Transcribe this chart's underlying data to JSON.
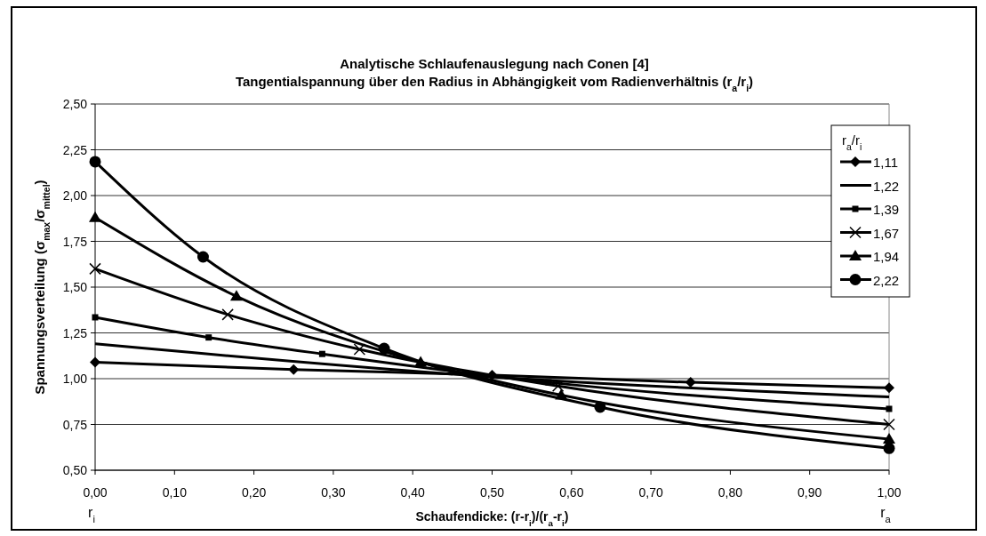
{
  "chart_data": {
    "type": "line",
    "title": "Analytische Schlaufenauslegung nach Conen [4]",
    "subtitle": "Tangentialspannung über den Radius in Abhängigkeit vom Radienverhältnis (r$_{a}$/r$_{i}$)",
    "xlabel": "Schaufendicke: (r-r$_{i}$)/(r$_{a}$-r$_{i}$)",
    "ylabel": "Spannungsverteilung (σ$_{max}$/σ$_{mittel}$)",
    "legend_title": "r$_{a}$/r$_{i}$",
    "legend": "right",
    "grid": "y",
    "line_style": "solid",
    "xlim": [
      0,
      1
    ],
    "ylim": [
      0.5,
      2.5
    ],
    "xticks": [
      {
        "value": 0,
        "label": "0,00"
      },
      {
        "value": 0.1,
        "label": "0,10"
      },
      {
        "value": 0.2,
        "label": "0,20"
      },
      {
        "value": 0.3,
        "label": "0,30"
      },
      {
        "value": 0.4,
        "label": "0,40"
      },
      {
        "value": 0.5,
        "label": "0,50"
      },
      {
        "value": 0.6,
        "label": "0,60"
      },
      {
        "value": 0.7,
        "label": "0,70"
      },
      {
        "value": 0.8,
        "label": "0,80"
      },
      {
        "value": 0.9,
        "label": "0,90"
      },
      {
        "value": 1,
        "label": "1,00"
      }
    ],
    "yticks": [
      {
        "value": 0.5,
        "label": "0,50"
      },
      {
        "value": 0.75,
        "label": "0,75"
      },
      {
        "value": 1,
        "label": "1,00"
      },
      {
        "value": 1.25,
        "label": "1,25"
      },
      {
        "value": 1.5,
        "label": "1,50"
      },
      {
        "value": 1.75,
        "label": "1,75"
      },
      {
        "value": 2,
        "label": "2,00"
      },
      {
        "value": 2.25,
        "label": "2,25"
      },
      {
        "value": 2.5,
        "label": "2,50"
      }
    ],
    "annotations": [
      "r$_{i}$",
      "r$_{a}$"
    ],
    "series": [
      {
        "name": "1,11",
        "color": "#000000",
        "marker": "diamond",
        "x": [
          0,
          0.25,
          0.5,
          0.75,
          1
        ],
        "values": [
          1.09,
          1.05,
          1.02,
          0.98,
          0.95
        ]
      },
      {
        "name": "1,22",
        "color": "#000000",
        "marker": "none",
        "x": [
          0,
          0.5,
          1
        ],
        "values": [
          1.19,
          1.01,
          0.9
        ]
      },
      {
        "name": "1,39",
        "color": "#000000",
        "marker": "square",
        "x": [
          0,
          0.143,
          0.286,
          0.571,
          1
        ],
        "values": [
          1.335,
          1.225,
          1.135,
          0.98,
          0.835
        ]
      },
      {
        "name": "1,67",
        "color": "#000000",
        "marker": "cross",
        "x": [
          0,
          0.167,
          0.333,
          0.583,
          1
        ],
        "values": [
          1.6,
          1.35,
          1.16,
          0.96,
          0.75
        ]
      },
      {
        "name": "1,94",
        "color": "#000000",
        "marker": "triangle",
        "x": [
          0,
          0.178,
          0.41,
          0.587,
          1
        ],
        "values": [
          1.88,
          1.45,
          1.09,
          0.91,
          0.67
        ]
      },
      {
        "name": "2,22",
        "color": "#000000",
        "marker": "circle",
        "x": [
          0,
          0.136,
          0.364,
          0.636,
          1
        ],
        "values": [
          2.185,
          1.665,
          1.165,
          0.845,
          0.62
        ]
      }
    ]
  }
}
